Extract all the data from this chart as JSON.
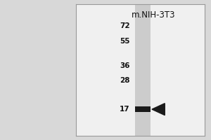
{
  "bg_color": "#d8d8d8",
  "panel_bg": "#f0f0f0",
  "lane_color": "#d4d4d4",
  "band_color": "#1a1a1a",
  "arrow_color": "#1a1a1a",
  "marker_color": "#111111",
  "title_text": "m.NIH-3T3",
  "title_fontsize": 8.5,
  "mw_markers": [
    72,
    55,
    36,
    28,
    17
  ],
  "band_mw": 17,
  "border_color": "#999999",
  "marker_fontsize": 7.5,
  "marker_fontweight": "bold"
}
